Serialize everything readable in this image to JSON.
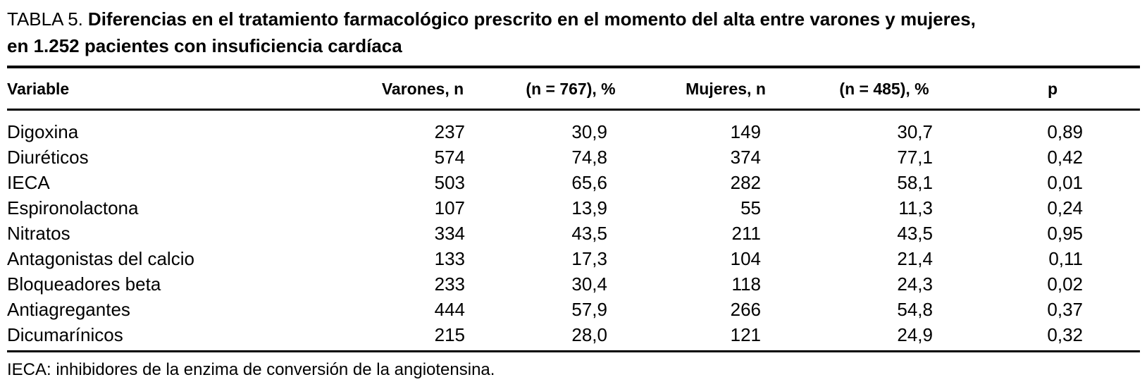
{
  "title": {
    "prefix": "TABLA 5.",
    "line1": "Diferencias en el tratamiento farmacológico prescrito en el momento del alta entre varones y mujeres,",
    "line2": "en 1.252 pacientes con insuficiencia cardíaca"
  },
  "table": {
    "columns": [
      "Variable",
      "Varones, n",
      "(n = 767), %",
      "Mujeres, n",
      "(n = 485), %",
      "p"
    ],
    "rows": [
      [
        "Digoxina",
        "237",
        "30,9",
        "149",
        "30,7",
        "0,89"
      ],
      [
        "Diuréticos",
        "574",
        "74,8",
        "374",
        "77,1",
        "0,42"
      ],
      [
        "IECA",
        "503",
        "65,6",
        "282",
        "58,1",
        "0,01"
      ],
      [
        "Espironolactona",
        "107",
        "13,9",
        "55",
        "11,3",
        "0,24"
      ],
      [
        "Nitratos",
        "334",
        "43,5",
        "211",
        "43,5",
        "0,95"
      ],
      [
        "Antagonistas del calcio",
        "133",
        "17,3",
        "104",
        "21,4",
        "0,11"
      ],
      [
        "Bloqueadores beta",
        "233",
        "30,4",
        "118",
        "24,3",
        "0,02"
      ],
      [
        "Antiagregantes",
        "444",
        "57,9",
        "266",
        "54,8",
        "0,37"
      ],
      [
        "Dicumarínicos",
        "215",
        "28,0",
        "121",
        "24,9",
        "0,32"
      ]
    ]
  },
  "footnote": "IECA: inhibidores de la enzima de conversión de la angiotensina.",
  "colors": {
    "text": "#000000",
    "background": "#ffffff",
    "rule": "#000000"
  }
}
